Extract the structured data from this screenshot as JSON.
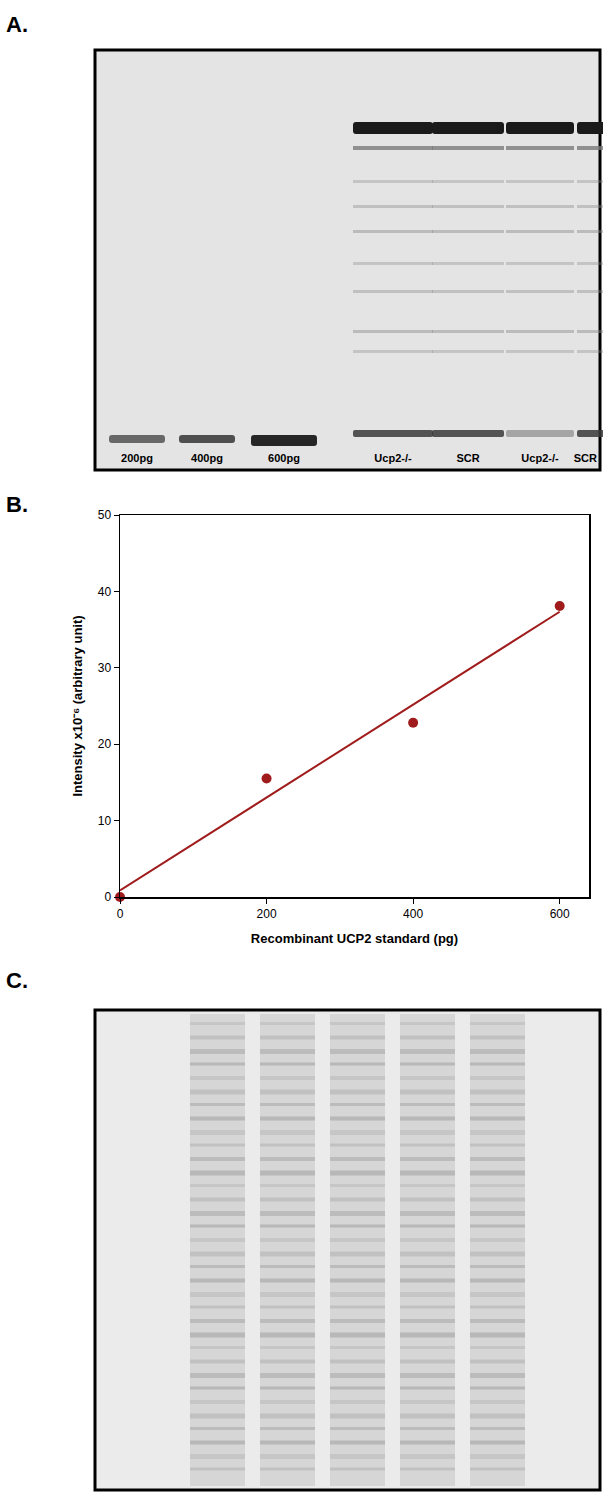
{
  "chart_data": {
    "type": "scatter",
    "x": [
      0,
      200,
      400,
      600
    ],
    "values": [
      0,
      15.5,
      22.8,
      38.1
    ],
    "color": "#a01c1c",
    "marker": "circle",
    "xlabel": "Recombinant UCP2 standard (pg)",
    "ylabel": "Intensity x10⁻⁶ (arbitrary unit)",
    "xlim": [
      0,
      640
    ],
    "ylim": [
      0,
      50
    ],
    "xticks": [
      0,
      200,
      400,
      600
    ],
    "yticks": [
      0,
      10,
      20,
      30,
      40,
      50
    ],
    "grid": false,
    "fit": {
      "x": [
        0,
        600
      ],
      "values": [
        0.86,
        37.34
      ],
      "line_style": "solid"
    }
  },
  "panels": [
    {
      "letter": "A.",
      "lane_labels": [
        "200pg",
        "400pg",
        "600pg",
        "Ucp2-/-",
        "SCR",
        "Ucp2-/-",
        "SCR"
      ]
    },
    {
      "letter": "B."
    },
    {
      "letter": "C.",
      "lane_count": 5
    }
  ]
}
